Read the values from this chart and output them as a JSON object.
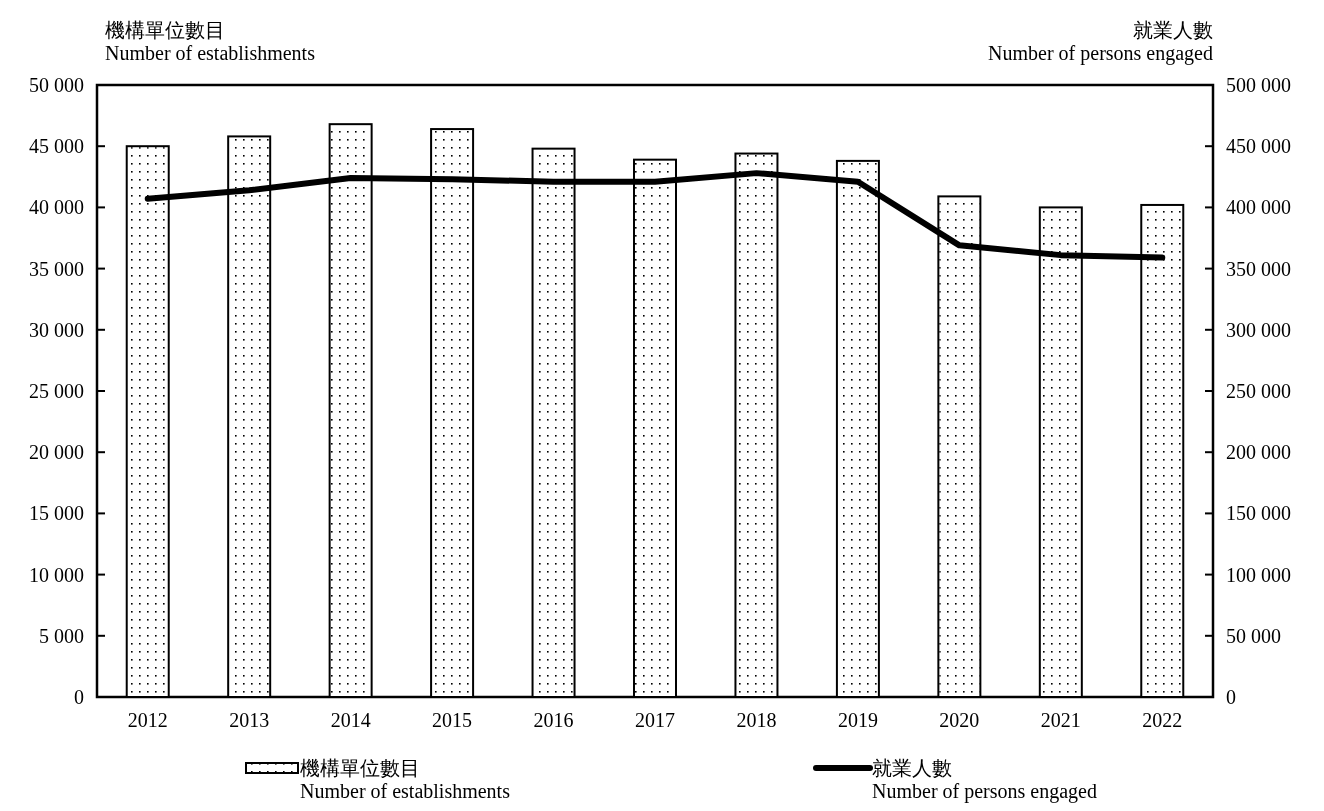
{
  "chart_data": {
    "type": "bar",
    "ylabel": "機構單位數目\nNumber of establishments",
    "y2label": "就業人數\nNumber of persons engaged",
    "categories": [
      "2012",
      "2013",
      "2014",
      "2015",
      "2016",
      "2017",
      "2018",
      "2019",
      "2020",
      "2021",
      "2022"
    ],
    "series": [
      {
        "name": "機構單位數目\nNumber of establishments",
        "color": "#ffffff",
        "values": [
          45000,
          45800,
          46800,
          46400,
          44800,
          43900,
          44400,
          43800,
          40900,
          40000,
          40200
        ]
      },
      {
        "name": "就業人數\nNumber of persons engaged",
        "type": "line",
        "axis": "y2",
        "color": "#000000",
        "values": [
          407000,
          414000,
          424000,
          423000,
          421000,
          421000,
          428000,
          421000,
          369000,
          361000,
          359000
        ]
      }
    ],
    "ylim": [
      0,
      50000
    ],
    "yticks": [
      0,
      {
        "value": 5000,
        "label": "5 000"
      },
      {
        "value": 10000,
        "label": "10 000"
      },
      {
        "value": 15000,
        "label": "15 000"
      },
      {
        "value": 20000,
        "label": "20 000"
      },
      {
        "value": 25000,
        "label": "25 000"
      },
      {
        "value": 30000,
        "label": "30 000"
      },
      {
        "value": 35000,
        "label": "35 000"
      },
      {
        "value": 40000,
        "label": "40 000"
      },
      {
        "value": 45000,
        "label": "45 000"
      },
      {
        "value": 50000,
        "label": "50 000"
      }
    ],
    "y2lim": [
      0,
      500000
    ],
    "y2ticks": [
      0,
      {
        "value": 50000,
        "label": "50 000"
      },
      {
        "value": 100000,
        "label": "100 000"
      },
      {
        "value": 150000,
        "label": "150 000"
      },
      {
        "value": 200000,
        "label": "200 000"
      },
      {
        "value": 250000,
        "label": "250 000"
      },
      {
        "value": 300000,
        "label": "300 000"
      },
      {
        "value": 350000,
        "label": "350 000"
      },
      {
        "value": 400000,
        "label": "400 000"
      },
      {
        "value": 450000,
        "label": "450 000"
      },
      {
        "value": 500000,
        "label": "500 000"
      }
    ],
    "legend": "bottom",
    "grid": false,
    "marker": "none"
  }
}
